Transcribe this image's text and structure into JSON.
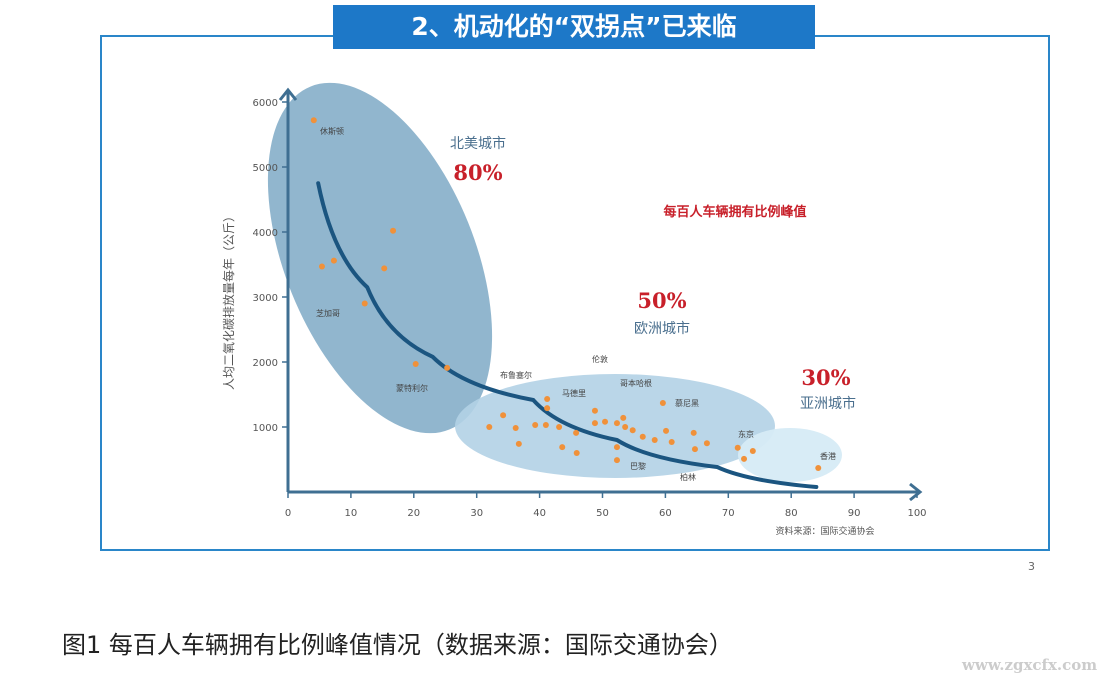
{
  "banner_title": "2、机动化的“双拐点”已来临",
  "caption": "图1 每百人车辆拥有比例峰值情况（数据来源：国际交通协会）",
  "page_number": "3",
  "watermark": "www.zgxcfx.com",
  "chart_data": {
    "type": "scatter",
    "ylabel": "人均二氧化碳排放量每年（公斤）",
    "xlim": [
      0,
      100
    ],
    "ylim": [
      0,
      6000
    ],
    "xticks": [
      "0",
      "10",
      "20",
      "30",
      "40",
      "50",
      "60",
      "70",
      "80",
      "90",
      "100"
    ],
    "yticks": [
      "1000",
      "2000",
      "3000",
      "4000",
      "5000",
      "6000"
    ],
    "note": "每百人车辆拥有比例峰值",
    "source": "资料来源：国际交通协会",
    "groups": [
      {
        "name": "北美城市",
        "peak": "80%"
      },
      {
        "name": "欧洲城市",
        "peak": "50%"
      },
      {
        "name": "亚洲城市",
        "peak": "30%"
      }
    ],
    "city_labels": [
      "休斯顿",
      "芝加哥",
      "蒙特利尔",
      "布鲁塞尔",
      "伦敦",
      "马德里",
      "哥本哈根",
      "慕尼黑",
      "巴黎",
      "柏林",
      "东京",
      "香港"
    ],
    "points": [
      [
        4.1,
        5720
      ],
      [
        5.4,
        3470
      ],
      [
        7.3,
        3560
      ],
      [
        16.7,
        4020
      ],
      [
        15.3,
        3440
      ],
      [
        12.2,
        2900
      ],
      [
        20.3,
        1970
      ],
      [
        25.3,
        1910
      ],
      [
        32,
        1000
      ],
      [
        34.2,
        1180
      ],
      [
        36.2,
        985
      ],
      [
        36.7,
        740
      ],
      [
        39.3,
        1030
      ],
      [
        41,
        1030
      ],
      [
        41.2,
        1430
      ],
      [
        41.2,
        1290
      ],
      [
        43.1,
        1000
      ],
      [
        43.6,
        690
      ],
      [
        45.8,
        910
      ],
      [
        45.9,
        600
      ],
      [
        48.8,
        1250
      ],
      [
        48.8,
        1060
      ],
      [
        50.4,
        1080
      ],
      [
        52.3,
        1060
      ],
      [
        52.3,
        690
      ],
      [
        52.3,
        490
      ],
      [
        53.3,
        1140
      ],
      [
        53.6,
        1000
      ],
      [
        54.8,
        950
      ],
      [
        56.4,
        850
      ],
      [
        58.3,
        800
      ],
      [
        59.6,
        1370
      ],
      [
        60.1,
        940
      ],
      [
        61,
        770
      ],
      [
        64.5,
        910
      ],
      [
        64.7,
        660
      ],
      [
        66.6,
        750
      ],
      [
        71.5,
        680
      ],
      [
        72.5,
        510
      ],
      [
        73.9,
        630
      ],
      [
        84.3,
        370
      ]
    ],
    "trend_line": [
      [
        4.8,
        4750
      ],
      [
        12.6,
        3150
      ],
      [
        23,
        2080
      ],
      [
        39,
        1415
      ],
      [
        52.3,
        800
      ],
      [
        68.2,
        385
      ],
      [
        84,
        77
      ]
    ],
    "colors": {
      "ellipse": "#7ea9c6",
      "europe": "#b3d1e6",
      "asia": "#d6ebf5",
      "trend": "#1b5580",
      "point": "#f0913a",
      "peak": "#c8202a",
      "group_label": "#4a6f8e",
      "banner": "#1d78c8"
    }
  }
}
